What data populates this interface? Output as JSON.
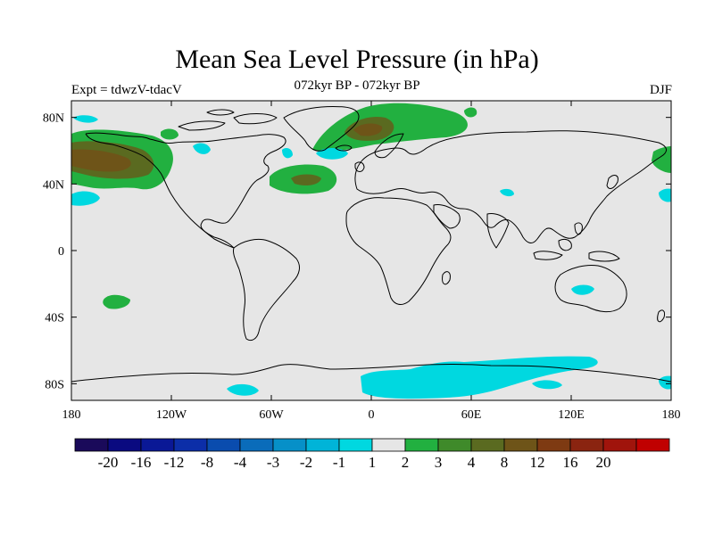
{
  "title": "Mean Sea Level Pressure (in hPa)",
  "left_label": "Expt = tdwzV-tdacV",
  "center_label": "072kyr BP - 072kyr BP",
  "right_label": "DJF",
  "colors": {
    "ocean_background": "#e6e6e6",
    "coastline": "#000000",
    "neg_1_to_minus_2": "#00d8e0",
    "pos_1_to_2": "#22b040",
    "pos_2_to_3": "#3f8a2a",
    "pos_3_to_4": "#5a6a20",
    "pos_4_to_8": "#6e5418"
  },
  "map": {
    "projection": "cylindrical-equidistant",
    "lon_range": [
      -180,
      180
    ],
    "lat_range": [
      -90,
      90
    ],
    "lon_ticks": [
      {
        "value": -180,
        "label": "180"
      },
      {
        "value": -120,
        "label": "120W"
      },
      {
        "value": -60,
        "label": "60W"
      },
      {
        "value": 0,
        "label": "0"
      },
      {
        "value": 60,
        "label": "60E"
      },
      {
        "value": 120,
        "label": "120E"
      },
      {
        "value": 180,
        "label": "180"
      }
    ],
    "lat_ticks": [
      {
        "value": 80,
        "label": "80N"
      },
      {
        "value": 40,
        "label": "40N"
      },
      {
        "value": 0,
        "label": "0"
      },
      {
        "value": -40,
        "label": "40S"
      },
      {
        "value": -80,
        "label": "80S"
      }
    ]
  },
  "colorbar": {
    "colors": [
      "#1a0a5a",
      "#0a0a80",
      "#0a1896",
      "#0c2ea8",
      "#0a4cae",
      "#0a6cba",
      "#0690c8",
      "#00b4d8",
      "#00d8e0",
      "#e6e6e6",
      "#22b040",
      "#3f8a2a",
      "#5a6a20",
      "#6e5418",
      "#7e3a12",
      "#8a2410",
      "#a0140c",
      "#c00000"
    ],
    "labels": [
      "-20",
      "-16",
      "-12",
      "-8",
      "-4",
      "-3",
      "-2",
      "-1",
      "1",
      "2",
      "3",
      "4",
      "8",
      "12",
      "16",
      "20"
    ]
  }
}
